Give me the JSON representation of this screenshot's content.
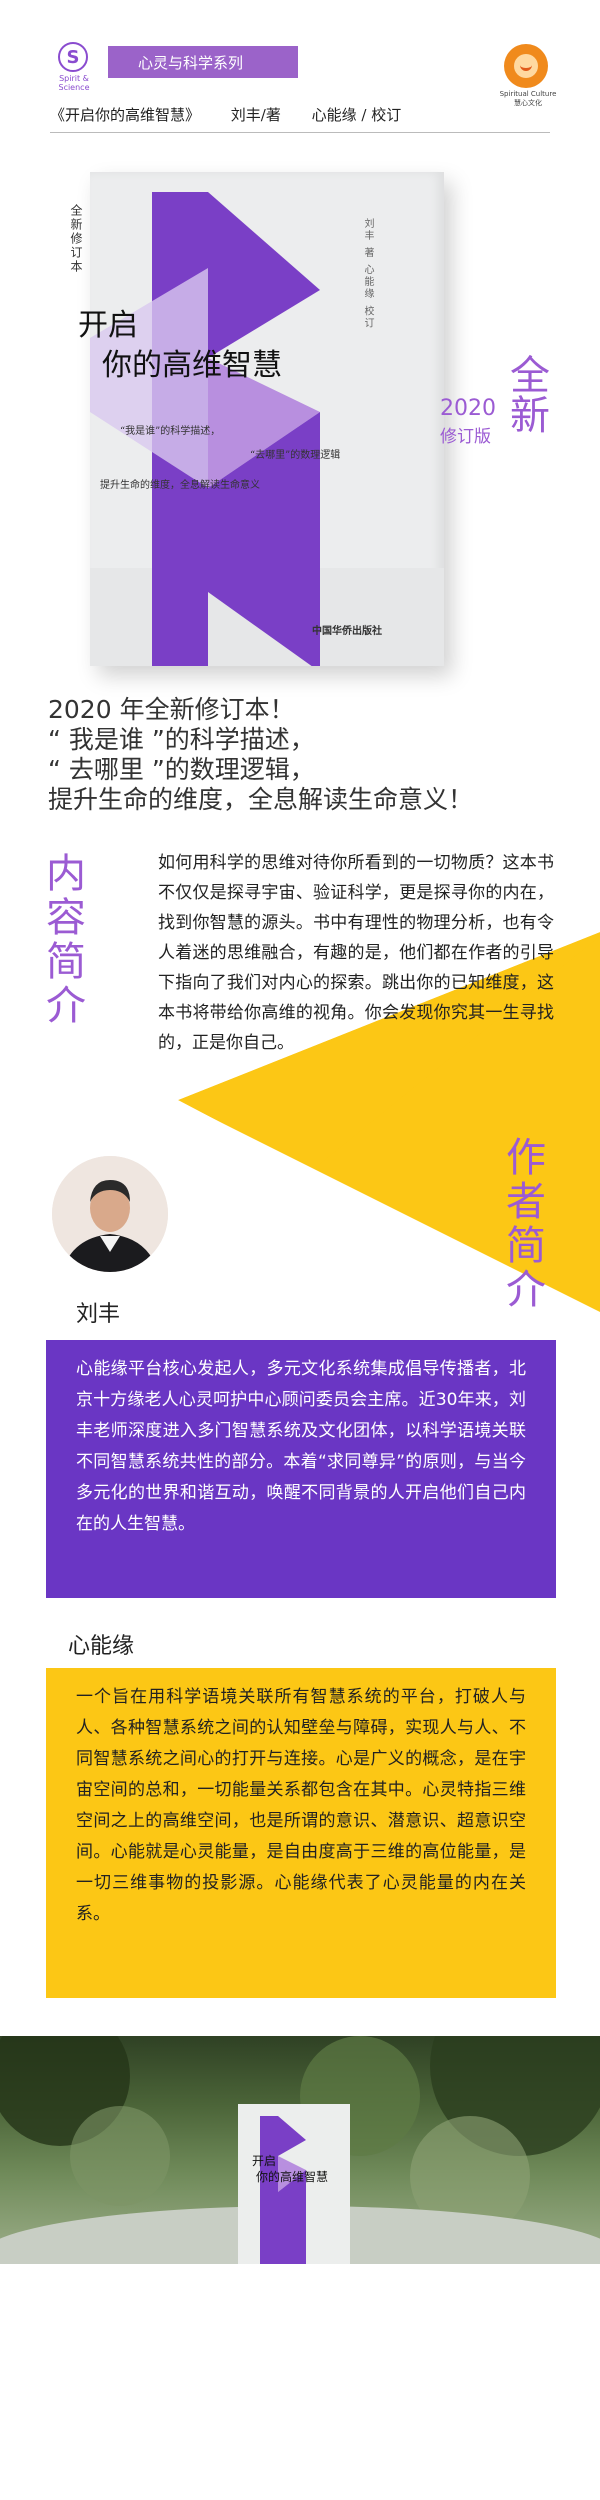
{
  "header": {
    "logo_s_letter": "S",
    "logo_s_caption": "Spirit & Science",
    "series": "心灵与科学系列",
    "logo_r_caption_en": "Spiritual Culture",
    "logo_r_caption_cn": "慧心文化",
    "book": "《开启你的高维智慧》",
    "author_role": "刘丰/著",
    "editor_role": "心能缘 / 校订"
  },
  "cover": {
    "badge": "全新修订本",
    "title_line1": "开启",
    "title_line2": "你的高维智慧",
    "author_vertical": "刘丰 著    心能缘 校订",
    "tag1": "“我是谁”的科学描述，",
    "tag2": "“去哪里”的数理逻辑",
    "tag3": "提升生命的维度，全息解读生命意义",
    "publisher": "中国华侨出版社"
  },
  "edition": {
    "big": "全新",
    "year": "2020",
    "label": "修订版"
  },
  "slogan": [
    "2020 年全新修订本！",
    "“ 我是谁 ”的科学描述，",
    "“ 去哪里 ”的数理逻辑，",
    "提升生命的维度，全息解读生命意义！"
  ],
  "intro": {
    "heading": "内容简介",
    "text": "如何用科学的思维对待你所看到的一切物质？这本书不仅仅是探寻宇宙、验证科学，更是探寻你的内在，找到你智慧的源头。书中有理性的物理分析，也有令人着迷的思维融合，有趣的是，他们都在作者的引导下指向了我们对内心的探索。跳出你的已知维度，这本书将带给你高维的视角。你会发现你究其一生寻找的，正是你自己。"
  },
  "author": {
    "heading": "作者简介",
    "name": "刘丰",
    "bio": "心能缘平台核心发起人，多元文化系统集成倡导传播者，北京十方缘老人心灵呵护中心顾问委员会主席。近30年来，刘丰老师深度进入多门智慧系统及文化团体，以科学语境关联不同智慧系统共性的部分。本着“求同尊异”的原则，与当今多元化的世界和谐互动，唤醒不同背景的人开启他们自己内在的人生智慧。"
  },
  "org": {
    "name": "心能缘",
    "text": "一个旨在用科学语境关联所有智慧系统的平台，打破人与人、各种智慧系统之间的认知壁垒与障碍，实现人与人、不同智慧系统之间心的打开与连接。心是广义的概念，是在宇宙空间的总和，一切能量关系都包含在其中。心灵特指三维空间之上的高维空间，也是所谓的意识、潜意识、超意识空间。心能就是心灵能量，是自由度高于三维的高位能量，是一切三维事物的投影源。心能缘代表了心灵能量的内在关系。"
  },
  "photo": {
    "title_line1": "开启",
    "title_line2": "你的高维智慧"
  },
  "colors": {
    "purple": "#6a36c4",
    "lavender": "#9b5bd3",
    "yellow": "#fcc715"
  }
}
